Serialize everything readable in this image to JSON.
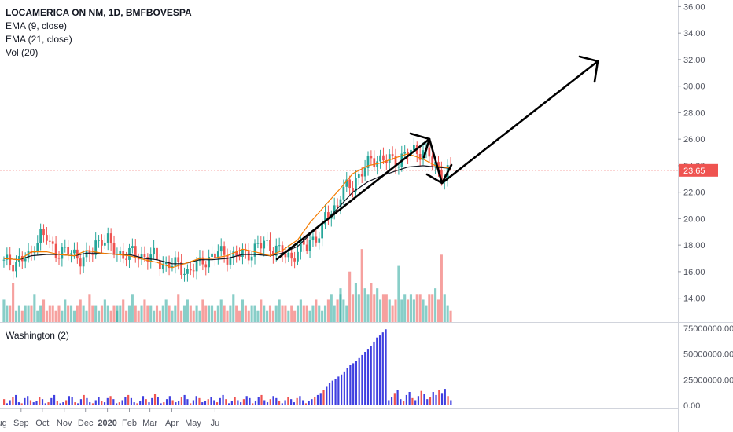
{
  "symbol_title": "LOCAMERICA ON NM, 1D, BMFBOVESPA",
  "indicators": [
    "EMA (9, close)",
    "EMA (21, close)",
    "Vol (20)"
  ],
  "sub_indicator": "Washington (2)",
  "colors": {
    "up": "#26a69a",
    "down": "#ef5350",
    "ema9": "#f57c00",
    "ema21": "#131722",
    "washington_up": "#3f3fe0",
    "washington_down": "#ef5350",
    "price_line": "#ef5350",
    "drawing": "#000000"
  },
  "chart_data": [
    {
      "type": "candlestick",
      "title": "LOCAMERICA ON NM, 1D, BMFBOVESPA",
      "price_axis": [
        "36.00",
        "34.00",
        "32.00",
        "30.00",
        "28.00",
        "26.00",
        "24.00",
        "22.00",
        "20.00",
        "18.00",
        "16.00",
        "14.00"
      ],
      "ylim": [
        12.2,
        36.5
      ],
      "x_axis": [
        "Aug",
        "Sep",
        "Oct",
        "Nov",
        "Dec",
        "2020",
        "Feb",
        "Mar",
        "Apr",
        "May",
        "Ju"
      ],
      "last_price": "23.65",
      "close_path": [
        [
          "2019-07-22",
          16.6
        ],
        [
          "2019-08-01",
          17.0
        ],
        [
          "2019-08-07",
          18.8
        ],
        [
          "2019-08-14",
          17.6
        ],
        [
          "2019-08-20",
          17.4
        ],
        [
          "2019-08-28",
          17.0
        ],
        [
          "2019-09-04",
          18.6
        ],
        [
          "2019-09-11",
          17.4
        ],
        [
          "2019-09-18",
          17.3
        ],
        [
          "2019-09-25",
          17.2
        ],
        [
          "2019-10-01",
          16.7
        ],
        [
          "2019-10-07",
          16.5
        ],
        [
          "2019-10-14",
          16.0
        ],
        [
          "2019-10-21",
          16.9
        ],
        [
          "2019-10-28",
          17.4
        ],
        [
          "2019-11-04",
          17.1
        ],
        [
          "2019-11-11",
          17.5
        ],
        [
          "2019-11-18",
          18.2
        ],
        [
          "2019-11-25",
          17.4
        ],
        [
          "2019-11-29",
          17.1
        ],
        [
          "2019-12-06",
          17.9
        ],
        [
          "2019-12-13",
          19.0
        ],
        [
          "2019-12-18",
          20.6
        ],
        [
          "2019-12-23",
          21.9
        ],
        [
          "2019-12-30",
          23.1
        ],
        [
          "2020-01-03",
          24.0
        ],
        [
          "2020-01-08",
          24.6
        ],
        [
          "2020-01-15",
          24.3
        ],
        [
          "2020-01-22",
          24.9
        ],
        [
          "2020-01-29",
          25.2
        ],
        [
          "2020-02-03",
          24.0
        ],
        [
          "2020-02-07",
          23.3
        ],
        [
          "2020-02-11",
          23.65
        ]
      ],
      "ema9": [
        17.0,
        16.9,
        17.5,
        17.5,
        17.3,
        17.2,
        17.6,
        17.4,
        17.3,
        17.2,
        16.9,
        16.7,
        16.3,
        16.6,
        17.0,
        17.0,
        17.2,
        17.7,
        17.5,
        17.2,
        17.6,
        18.4,
        19.7,
        21.0,
        22.3,
        23.4,
        24.0,
        24.2,
        24.6,
        24.9,
        24.5,
        24.0,
        23.8
      ],
      "ema21": [
        17.0,
        16.9,
        17.2,
        17.3,
        17.3,
        17.2,
        17.4,
        17.4,
        17.3,
        17.3,
        17.0,
        16.9,
        16.6,
        16.6,
        16.9,
        16.9,
        17.0,
        17.3,
        17.3,
        17.2,
        17.4,
        17.9,
        18.8,
        19.8,
        21.0,
        22.0,
        22.8,
        23.2,
        23.6,
        23.9,
        24.0,
        23.9,
        23.8
      ]
    },
    {
      "type": "bar",
      "title": "Vol (20)",
      "series": [
        {
          "values": [
            "4",
            "3",
            "3",
            "7",
            "2",
            "3",
            "2",
            "3",
            "3",
            "3",
            "5",
            "2",
            "3",
            "4",
            "2",
            "3",
            "3",
            "2",
            "3",
            "2",
            "4",
            "3",
            "3",
            "2",
            "3",
            "4",
            "3",
            "2",
            "5",
            "3",
            "3",
            "2",
            "3",
            "4",
            "3",
            "2",
            "3",
            "2",
            "3",
            "3",
            "4",
            "2",
            "3",
            "5",
            "3",
            "2",
            "3",
            "4",
            "3",
            "3",
            "2",
            "3",
            "2",
            "3",
            "4",
            "3",
            "2",
            "3",
            "5",
            "2",
            "3",
            "4",
            "3",
            "2",
            "3",
            "2",
            "4",
            "3",
            "3",
            "3",
            "2",
            "3",
            "4",
            "3",
            "2",
            "3",
            "5",
            "3",
            "2",
            "4",
            "3",
            "2",
            "3",
            "3",
            "2",
            "4",
            "3",
            "2",
            "3",
            "2",
            "3",
            "4",
            "3",
            "3",
            "2",
            "3",
            "2",
            "3",
            "4",
            "3",
            "3",
            "2",
            "3",
            "4",
            "3",
            "2",
            "3",
            "4",
            "5",
            "3",
            "4",
            "6",
            "5",
            "4",
            "3",
            "9",
            "5",
            "7",
            "5",
            "13",
            "6",
            "5",
            "7",
            "5",
            "6",
            "4",
            "5",
            "5",
            "4",
            "3",
            "4",
            "10",
            "4",
            "5",
            "4",
            "5",
            "4",
            "5",
            "5",
            "4",
            "3",
            "5",
            "5",
            "6",
            "4",
            "12",
            "5",
            "3",
            "2"
          ]
        }
      ]
    },
    {
      "type": "bar",
      "title": "Washington (2)",
      "y_axis": [
        "75000000.00",
        "50000000.00",
        "25000000.00",
        "0.00"
      ],
      "ylim": [
        0,
        78000000
      ],
      "series": [
        {
          "values": [
            6,
            2,
            5,
            8,
            10,
            3,
            2,
            7,
            9,
            5,
            3,
            4,
            8,
            6,
            2,
            3,
            7,
            10,
            4,
            2,
            3,
            5,
            9,
            8,
            3,
            2,
            6,
            10,
            7,
            3,
            2,
            5,
            8,
            4,
            3,
            7,
            9,
            6,
            2,
            3,
            5,
            8,
            10,
            7,
            3,
            2,
            4,
            9,
            6,
            3,
            7,
            11,
            8,
            2,
            3,
            6,
            9,
            5,
            3,
            4,
            8,
            10,
            6,
            2,
            5,
            9,
            7,
            3,
            4,
            6,
            8,
            5,
            3,
            7,
            10,
            6,
            2,
            4,
            8,
            5,
            3,
            6,
            9,
            7,
            2,
            4,
            8,
            10,
            5,
            3,
            6,
            9,
            7,
            4,
            2,
            5,
            8,
            6,
            3,
            7,
            9,
            5,
            2,
            4,
            6,
            8,
            10,
            12,
            15,
            18,
            22,
            24,
            26,
            28,
            30,
            33,
            36,
            39,
            41,
            43,
            46,
            49,
            52,
            55,
            58,
            62,
            66,
            68,
            71,
            74,
            5,
            8,
            12,
            15,
            6,
            4,
            10,
            13,
            7,
            5,
            9,
            14,
            11,
            6,
            8,
            13,
            10,
            15,
            12,
            16,
            9,
            5
          ]
        }
      ]
    }
  ]
}
